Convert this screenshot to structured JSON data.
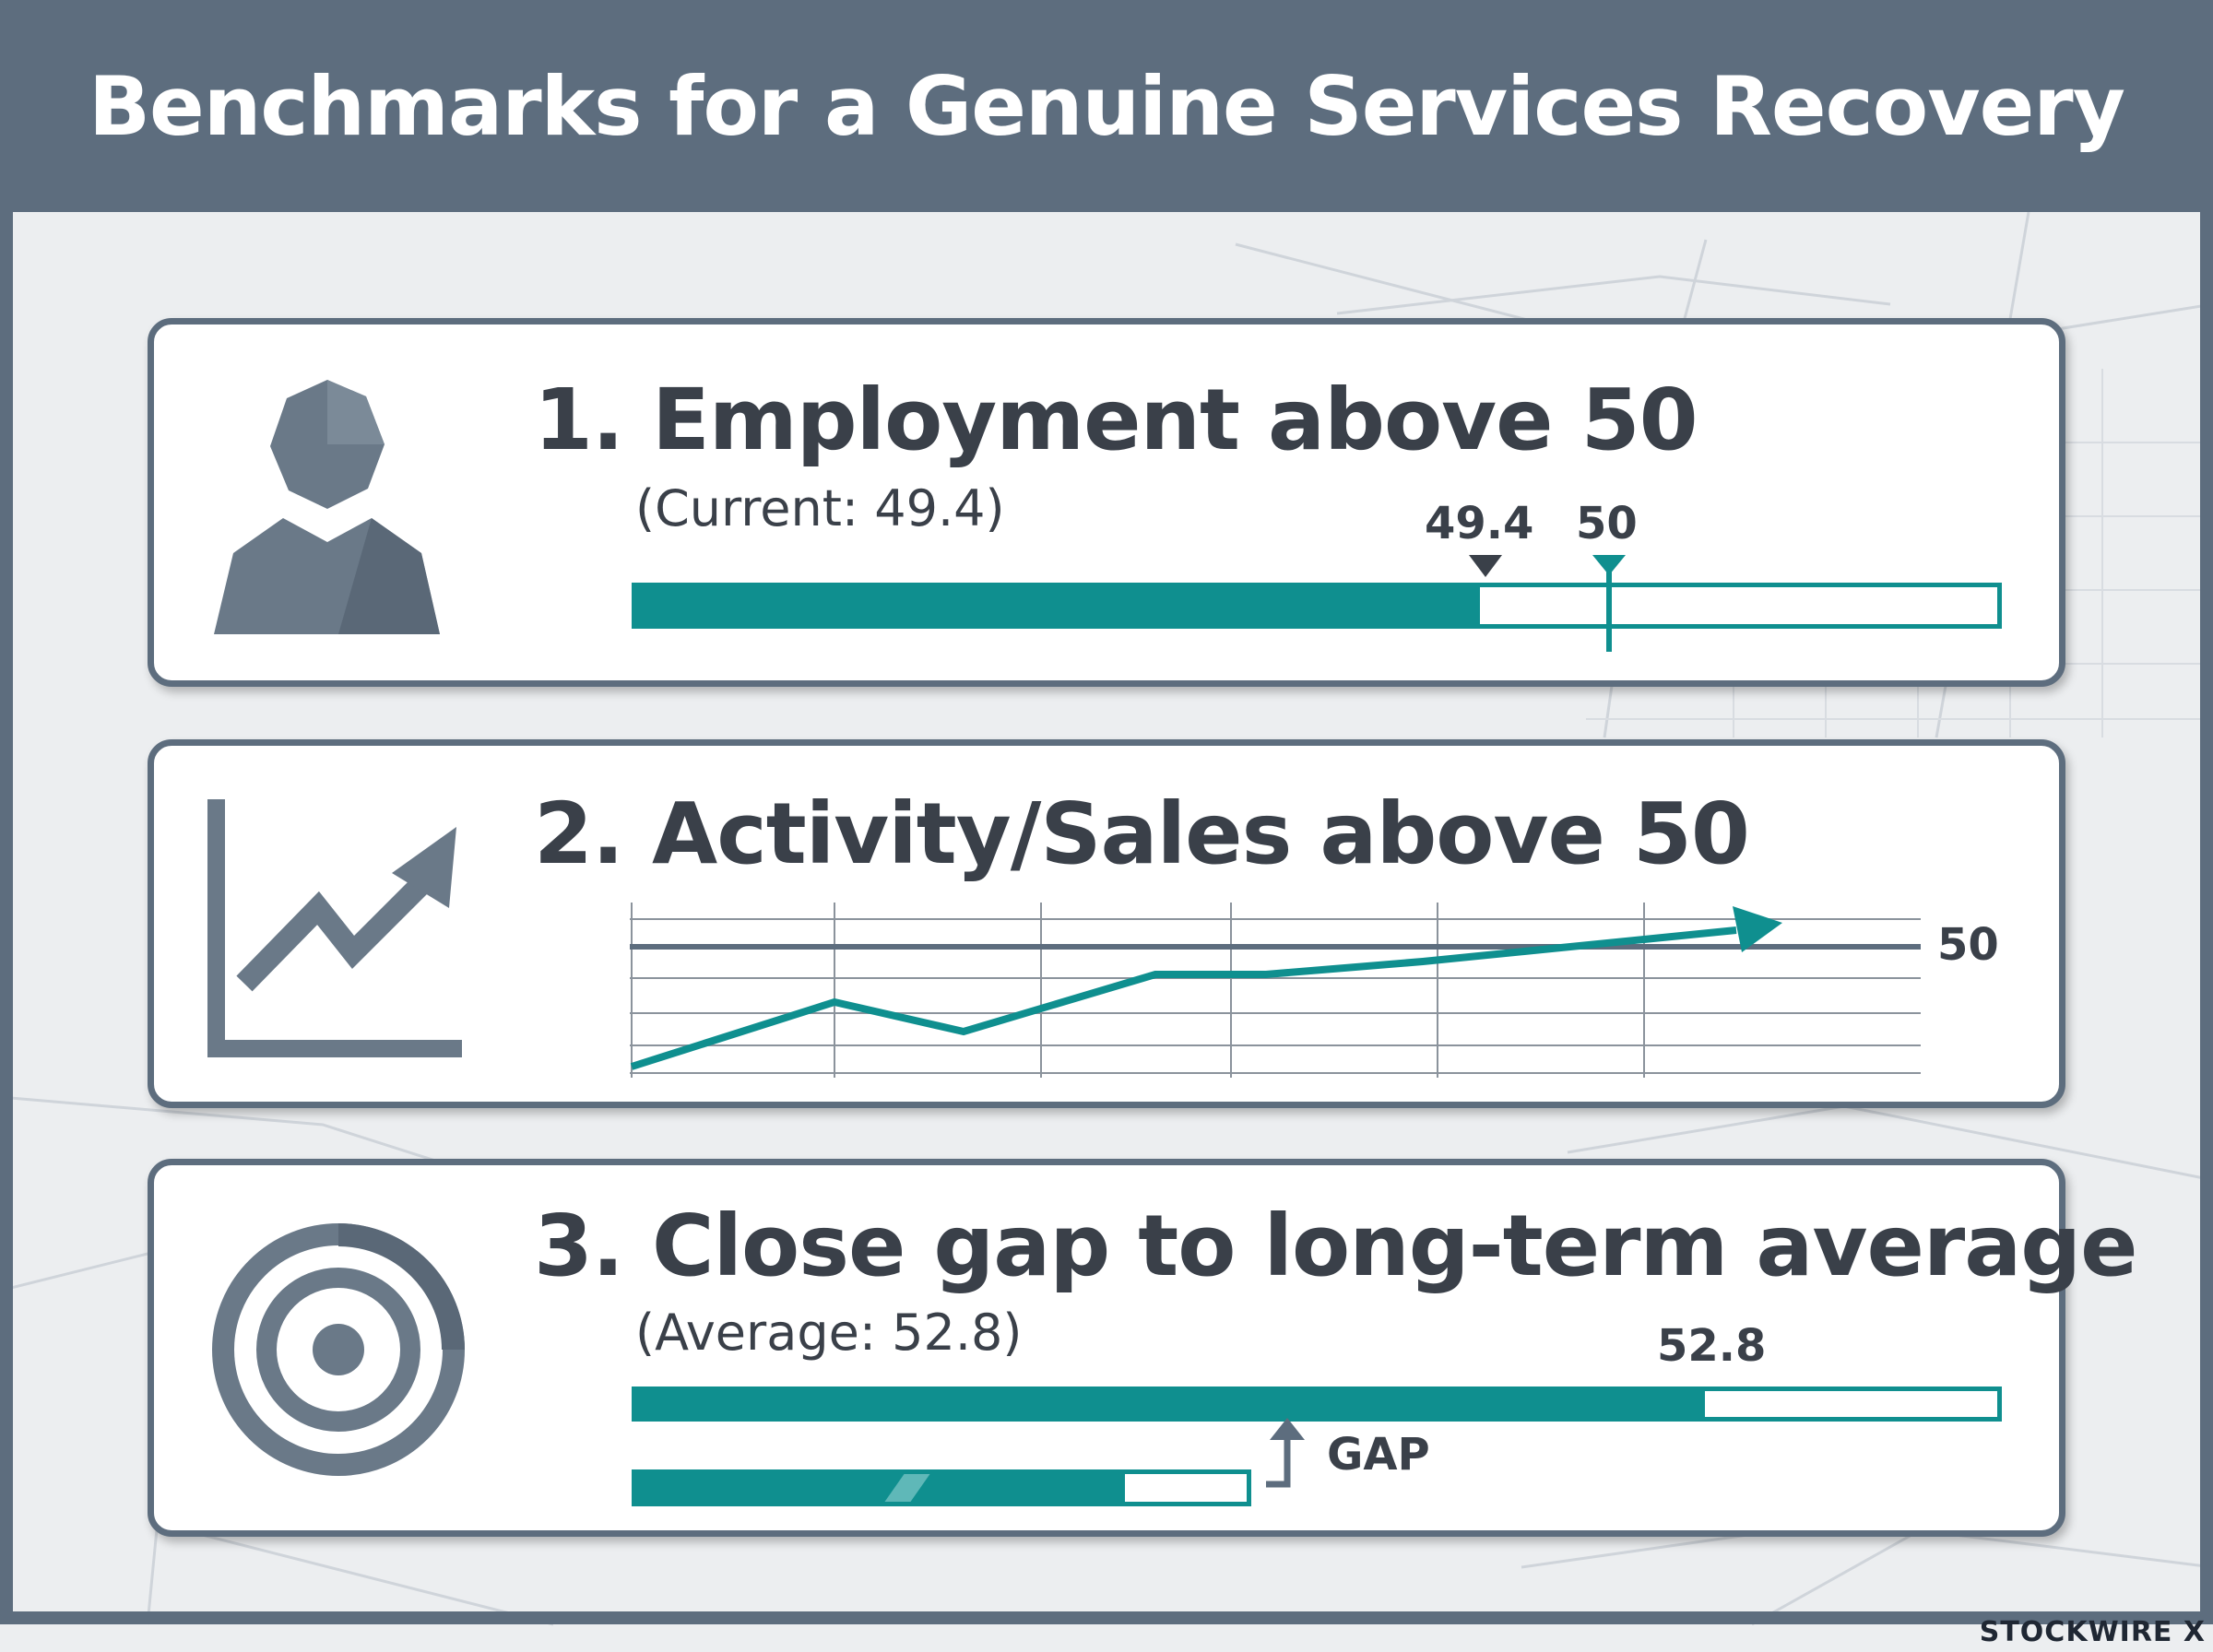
{
  "header": {
    "title": "Benchmarks for a Genuine Services Recovery"
  },
  "colors": {
    "accent": "#0f8f8f",
    "slate": "#5d6d7e",
    "text": "#3a4049"
  },
  "cards": [
    {
      "title": "1. Employment above 50",
      "subtitle": "(Current: 49.4)",
      "icon": "person-icon",
      "current_label": "49.4",
      "target_label": "50",
      "progress_fraction": 0.62,
      "target_fraction": 0.71
    },
    {
      "title": "2. Activity/Sales above 50",
      "icon": "trend-chart-icon",
      "threshold_label": "50"
    },
    {
      "title": "3. Close gap to long-term average",
      "subtitle": "(Average: 52.8)",
      "icon": "target-icon",
      "average_label": "52.8",
      "average_fraction": 0.785,
      "current_fraction": 0.8,
      "gap_label": "GAP"
    }
  ],
  "footer": {
    "logo": "STOCKWIRE X"
  }
}
